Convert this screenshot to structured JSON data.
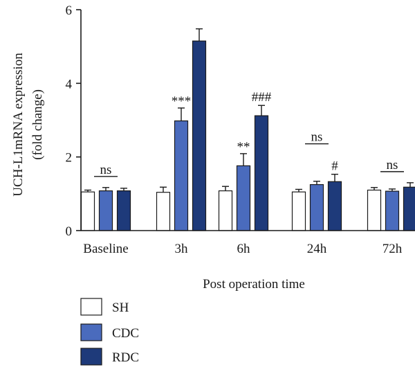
{
  "chart_data": {
    "type": "bar",
    "title": "",
    "xlabel": "Post operation time",
    "ylabel_line1": "UCH-L1mRNA expression",
    "ylabel_line2": "(fold change)",
    "ylim": [
      0,
      6
    ],
    "yticks": [
      0,
      2,
      4,
      6
    ],
    "categories": [
      "Baseline",
      "3h",
      "6h",
      "24h",
      "72h"
    ],
    "series": [
      {
        "name": "SH",
        "color": "#ffffff",
        "values": [
          1.05,
          1.04,
          1.08,
          1.05,
          1.1
        ],
        "errors": [
          0.05,
          0.14,
          0.12,
          0.07,
          0.07
        ]
      },
      {
        "name": "CDC",
        "color": "#4a6bbd",
        "values": [
          1.08,
          2.98,
          1.76,
          1.25,
          1.07
        ],
        "errors": [
          0.09,
          0.35,
          0.33,
          0.09,
          0.06
        ]
      },
      {
        "name": "RDC",
        "color": "#1e3a7a",
        "values": [
          1.08,
          5.15,
          3.12,
          1.33,
          1.18
        ],
        "errors": [
          0.07,
          0.33,
          0.28,
          0.2,
          0.12
        ]
      }
    ],
    "annotations": [
      {
        "category": 0,
        "series": 1,
        "text": "ns",
        "type": "bracket"
      },
      {
        "category": 1,
        "series": 1,
        "text": "***",
        "type": "star"
      },
      {
        "category": 2,
        "series": 1,
        "text": "**",
        "type": "star"
      },
      {
        "category": 2,
        "series": 2,
        "text": "###",
        "type": "star"
      },
      {
        "category": 3,
        "series": 1,
        "text": "ns",
        "type": "bracket"
      },
      {
        "category": 3,
        "series": 2,
        "text": "#",
        "type": "star"
      },
      {
        "category": 4,
        "series": 1,
        "text": "ns",
        "type": "bracket"
      }
    ],
    "legend": {
      "position": "bottom-left",
      "entries": [
        "SH",
        "CDC",
        "RDC"
      ]
    }
  }
}
